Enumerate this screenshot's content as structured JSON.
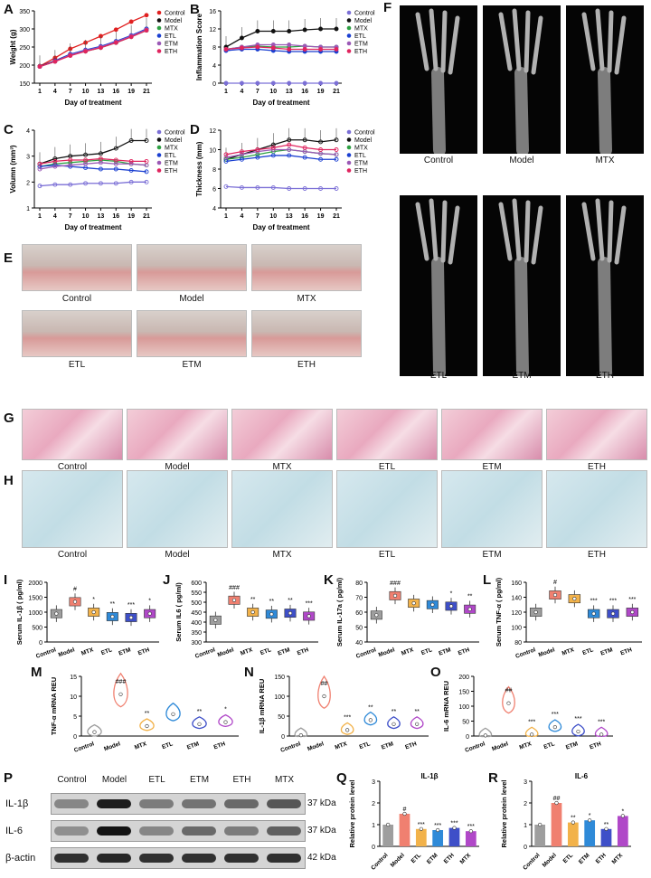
{
  "panels": {
    "A": {
      "letter": "A",
      "xlabel": "Day of treatment",
      "ylabel": "Weight (g)",
      "yticks": [
        "150",
        "200",
        "250",
        "300",
        "350"
      ],
      "xticks": [
        "1",
        "4",
        "7",
        "10",
        "13",
        "16",
        "19",
        "21"
      ],
      "legend": [
        "Control",
        "Model",
        "MTX",
        "ETL",
        "ETM",
        "ETH"
      ]
    },
    "B": {
      "letter": "B",
      "xlabel": "Day of treatment",
      "ylabel": "Inflammation Score",
      "yticks": [
        "0",
        "4",
        "8",
        "12",
        "16"
      ],
      "xticks": [
        "1",
        "4",
        "7",
        "10",
        "13",
        "16",
        "19",
        "21"
      ],
      "legend": [
        "Control",
        "Model",
        "MTX",
        "ETL",
        "ETM",
        "ETH"
      ]
    },
    "C": {
      "letter": "C",
      "xlabel": "Day of treatment",
      "ylabel": "Volumn (mm³)",
      "yticks": [
        "1",
        "2",
        "3",
        "4"
      ],
      "xticks": [
        "1",
        "4",
        "7",
        "10",
        "13",
        "16",
        "19",
        "21"
      ],
      "legend": [
        "Control",
        "Model",
        "MTX",
        "ETL",
        "ETM",
        "ETH"
      ]
    },
    "D": {
      "letter": "D",
      "xlabel": "Day of treatment",
      "ylabel": "Thickness (mm)",
      "yticks": [
        "4",
        "6",
        "8",
        "10",
        "12"
      ],
      "xticks": [
        "1",
        "4",
        "7",
        "10",
        "13",
        "16",
        "19",
        "21"
      ],
      "legend": [
        "Control",
        "Model",
        "MTX",
        "ETL",
        "ETM",
        "ETH"
      ]
    },
    "E": {
      "letter": "E",
      "labels": [
        "Control",
        "Model",
        "MTX",
        "ETL",
        "ETM",
        "ETH"
      ]
    },
    "F": {
      "letter": "F",
      "labels": [
        "Control",
        "Model",
        "MTX",
        "ETL",
        "ETM",
        "ETH"
      ]
    },
    "G": {
      "letter": "G",
      "labels": [
        "Control",
        "Model",
        "MTX",
        "ETL",
        "ETM",
        "ETH"
      ]
    },
    "H": {
      "letter": "H",
      "labels": [
        "Control",
        "Model",
        "MTX",
        "ETL",
        "ETM",
        "ETH"
      ]
    },
    "I": {
      "letter": "I",
      "ylabel": "Serum IL-1β ( pg/ml)",
      "yticks": [
        "0",
        "500",
        "1000",
        "1500",
        "2000"
      ],
      "sig": [
        "",
        "#",
        "*",
        "**",
        "***",
        "*"
      ]
    },
    "J": {
      "letter": "J",
      "ylabel": "Serum IL6 ( pg/ml)",
      "yticks": [
        "300",
        "350",
        "400",
        "450",
        "500",
        "550",
        "600"
      ],
      "sig": [
        "",
        "###",
        "**",
        "**",
        "**",
        "***"
      ]
    },
    "K": {
      "letter": "K",
      "ylabel": "Serum IL-17a ( pg/ml)",
      "yticks": [
        "40",
        "50",
        "60",
        "70",
        "80"
      ],
      "sig": [
        "",
        "###",
        "",
        "",
        "*",
        "**"
      ]
    },
    "L": {
      "letter": "L",
      "ylabel": "Serum TNF-α ( pg/ml)",
      "yticks": [
        "80",
        "100",
        "120",
        "140",
        "160"
      ],
      "sig": [
        "",
        "#",
        "",
        "***",
        "***",
        "***"
      ]
    },
    "M": {
      "letter": "M",
      "ylabel": "TNF-α mRNA REU",
      "yticks": [
        "0",
        "5",
        "10",
        "15"
      ],
      "sig": [
        "",
        "###",
        "**",
        "",
        "**",
        "*"
      ]
    },
    "N": {
      "letter": "N",
      "ylabel": "IL-1β mRNA REU",
      "yticks": [
        "0",
        "50",
        "100",
        "150"
      ],
      "sig": [
        "",
        "##",
        "***",
        "**",
        "**",
        "**"
      ]
    },
    "O": {
      "letter": "O",
      "ylabel": "IL-6 mRNA REU",
      "yticks": [
        "0",
        "50",
        "100",
        "150",
        "200"
      ],
      "sig": [
        "",
        "##",
        "***",
        "***",
        "***",
        "***"
      ]
    },
    "P": {
      "letter": "P",
      "lanes": [
        "Control",
        "Model",
        "ETL",
        "ETM",
        "ETH",
        "MTX"
      ],
      "rows": [
        {
          "name": "IL-1β",
          "kda": "37 kDa"
        },
        {
          "name": "IL-6",
          "kda": "37 kDa"
        },
        {
          "name": "β-actin",
          "kda": "42 kDa"
        }
      ]
    },
    "Q": {
      "letter": "Q",
      "title": "IL-1β",
      "ylabel": "Relative protein level",
      "yticks": [
        "0",
        "1",
        "2",
        "3"
      ],
      "sig": [
        "",
        "#",
        "***",
        "***",
        "***",
        "***"
      ]
    },
    "R": {
      "letter": "R",
      "title": "IL-6",
      "ylabel": "Relative protein level",
      "yticks": [
        "0",
        "1",
        "2",
        "3"
      ],
      "sig": [
        "",
        "##",
        "**",
        "*",
        "**",
        "*"
      ]
    }
  },
  "group_labels": [
    "Control",
    "Model",
    "MTX",
    "ETL",
    "ETM",
    "ETH"
  ],
  "group_labels_QR": [
    "Control",
    "Model",
    "ETL",
    "ETM",
    "ETH",
    "MTX"
  ],
  "colors": {
    "Control": "#7b6fd6",
    "Model": "#111111",
    "MTX": "#2ea043",
    "ETL": "#1a3fd1",
    "ETM": "#9b59b6",
    "ETH": "#e0245e",
    "ControlRed": "#e02020",
    "bar_control": "#9e9e9e",
    "bar_model": "#f08070",
    "bar_mtx": "#f2b24a",
    "bar_etl": "#2f8ad8",
    "bar_etm": "#3e4fc8",
    "bar_eth": "#b048c8"
  },
  "chart_data": [
    {
      "type": "line",
      "title": "",
      "xlabel": "Day of treatment",
      "ylabel": "Weight (g)",
      "x": [
        1,
        4,
        7,
        10,
        13,
        16,
        19,
        21
      ],
      "ylim": [
        150,
        350
      ],
      "series": [
        {
          "name": "Control",
          "values": [
            197,
            220,
            245,
            262,
            280,
            298,
            320,
            338
          ]
        },
        {
          "name": "Model",
          "values": [
            197,
            212,
            230,
            240,
            250,
            262,
            280,
            300
          ]
        },
        {
          "name": "MTX",
          "values": [
            196,
            210,
            228,
            238,
            248,
            262,
            278,
            296
          ]
        },
        {
          "name": "ETL",
          "values": [
            196,
            212,
            230,
            242,
            252,
            266,
            282,
            300
          ]
        },
        {
          "name": "ETM",
          "values": [
            196,
            210,
            228,
            240,
            250,
            264,
            280,
            298
          ]
        },
        {
          "name": "ETH",
          "values": [
            196,
            210,
            226,
            238,
            248,
            262,
            278,
            296
          ]
        }
      ]
    },
    {
      "type": "line",
      "title": "",
      "xlabel": "Day of treatment",
      "ylabel": "Inflammation Score",
      "x": [
        1,
        4,
        7,
        10,
        13,
        16,
        19,
        21
      ],
      "ylim": [
        0,
        16
      ],
      "series": [
        {
          "name": "Control",
          "values": [
            0,
            0,
            0,
            0,
            0,
            0,
            0,
            0
          ]
        },
        {
          "name": "Model",
          "values": [
            8,
            10,
            11.5,
            11.5,
            11.5,
            11.8,
            12,
            12
          ]
        },
        {
          "name": "MTX",
          "values": [
            7.5,
            8,
            8.2,
            8,
            8,
            8.2,
            8,
            8
          ]
        },
        {
          "name": "ETL",
          "values": [
            7.2,
            7.5,
            7.5,
            7.2,
            7,
            7,
            7,
            7
          ]
        },
        {
          "name": "ETM",
          "values": [
            7.5,
            8,
            8.5,
            8.5,
            8.5,
            8.2,
            8,
            8
          ]
        },
        {
          "name": "ETH",
          "values": [
            7.5,
            7.8,
            8,
            7.8,
            7.5,
            7.5,
            7.5,
            7.5
          ]
        }
      ]
    },
    {
      "type": "line",
      "title": "",
      "xlabel": "Day of treatment",
      "ylabel": "Volumn (mm³)",
      "x": [
        1,
        4,
        7,
        10,
        13,
        16,
        19,
        21
      ],
      "ylim": [
        1,
        4
      ],
      "series": [
        {
          "name": "Control",
          "values": [
            1.85,
            1.9,
            1.9,
            1.95,
            1.95,
            1.95,
            2,
            2
          ]
        },
        {
          "name": "Model",
          "values": [
            2.7,
            2.9,
            3.0,
            3.05,
            3.1,
            3.3,
            3.6,
            3.6
          ]
        },
        {
          "name": "MTX",
          "values": [
            2.6,
            2.7,
            2.75,
            2.8,
            2.85,
            2.8,
            2.7,
            2.65
          ]
        },
        {
          "name": "ETL",
          "values": [
            2.6,
            2.65,
            2.6,
            2.55,
            2.5,
            2.5,
            2.45,
            2.4
          ]
        },
        {
          "name": "ETM",
          "values": [
            2.5,
            2.6,
            2.65,
            2.7,
            2.75,
            2.7,
            2.7,
            2.65
          ]
        },
        {
          "name": "ETH",
          "values": [
            2.7,
            2.8,
            2.85,
            2.85,
            2.9,
            2.85,
            2.8,
            2.8
          ]
        }
      ]
    },
    {
      "type": "line",
      "title": "",
      "xlabel": "Day of treatment",
      "ylabel": "Thickness (mm)",
      "x": [
        1,
        4,
        7,
        10,
        13,
        16,
        19,
        21
      ],
      "ylim": [
        4,
        12
      ],
      "series": [
        {
          "name": "Control",
          "values": [
            6.2,
            6.1,
            6.1,
            6.1,
            6.0,
            6.0,
            6.0,
            6.0
          ]
        },
        {
          "name": "Model",
          "values": [
            9,
            9.5,
            10,
            10.5,
            11,
            11,
            10.8,
            11
          ]
        },
        {
          "name": "MTX",
          "values": [
            9,
            9.2,
            9.5,
            9.8,
            10,
            9.8,
            9.6,
            9.5
          ]
        },
        {
          "name": "ETL",
          "values": [
            8.8,
            9,
            9.2,
            9.4,
            9.4,
            9.2,
            9,
            9
          ]
        },
        {
          "name": "ETM",
          "values": [
            9.2,
            9.5,
            9.8,
            10,
            10,
            9.8,
            9.6,
            9.5
          ]
        },
        {
          "name": "ETH",
          "values": [
            9.5,
            9.8,
            10,
            10.2,
            10.5,
            10.2,
            10,
            10
          ]
        }
      ]
    },
    {
      "type": "bar",
      "title": "",
      "ylabel": "Serum IL-1β ( pg/ml)",
      "categories": [
        "Control",
        "Model",
        "MTX",
        "ETL",
        "ETM",
        "ETH"
      ],
      "values": [
        950,
        1350,
        1000,
        850,
        820,
        950
      ],
      "ylim": [
        0,
        2000
      ]
    },
    {
      "type": "bar",
      "title": "",
      "ylabel": "Serum IL6 ( pg/ml)",
      "categories": [
        "Control",
        "Model",
        "MTX",
        "ETL",
        "ETM",
        "ETH"
      ],
      "values": [
        410,
        510,
        450,
        440,
        445,
        430
      ],
      "ylim": [
        300,
        600
      ]
    },
    {
      "type": "bar",
      "title": "",
      "ylabel": "Serum IL-17a ( pg/ml)",
      "categories": [
        "Control",
        "Model",
        "MTX",
        "ETL",
        "ETM",
        "ETH"
      ],
      "values": [
        58,
        71,
        66,
        65,
        64,
        62
      ],
      "ylim": [
        40,
        80
      ]
    },
    {
      "type": "bar",
      "title": "",
      "ylabel": "Serum TNF-α ( pg/ml)",
      "categories": [
        "Control",
        "Model",
        "MTX",
        "ETL",
        "ETM",
        "ETH"
      ],
      "values": [
        120,
        143,
        138,
        118,
        118,
        120
      ],
      "ylim": [
        80,
        160
      ]
    },
    {
      "type": "bar",
      "title": "",
      "ylabel": "TNF-α mRNA REU",
      "categories": [
        "Control",
        "Model",
        "MTX",
        "ETL",
        "ETM",
        "ETH"
      ],
      "values": [
        1,
        10.5,
        2.5,
        5.5,
        3,
        3.5
      ],
      "ylim": [
        0,
        15
      ]
    },
    {
      "type": "bar",
      "title": "",
      "ylabel": "IL-1β mRNA REU",
      "categories": [
        "Control",
        "Model",
        "MTX",
        "ETL",
        "ETM",
        "ETH"
      ],
      "values": [
        2,
        100,
        15,
        40,
        30,
        30
      ],
      "ylim": [
        0,
        150
      ]
    },
    {
      "type": "bar",
      "title": "",
      "ylabel": "IL-6 mRNA REU",
      "categories": [
        "Control",
        "Model",
        "MTX",
        "ETL",
        "ETM",
        "ETH"
      ],
      "values": [
        2,
        110,
        5,
        30,
        15,
        5
      ],
      "ylim": [
        0,
        200
      ]
    },
    {
      "type": "bar",
      "title": "IL-1β",
      "ylabel": "Relative protein level",
      "categories": [
        "Control",
        "Model",
        "ETL",
        "ETM",
        "ETH",
        "MTX"
      ],
      "values": [
        1.0,
        1.5,
        0.8,
        0.75,
        0.85,
        0.7
      ],
      "ylim": [
        0,
        3
      ]
    },
    {
      "type": "bar",
      "title": "IL-6",
      "ylabel": "Relative protein level",
      "categories": [
        "Control",
        "Model",
        "ETL",
        "ETM",
        "ETH",
        "MTX"
      ],
      "values": [
        1.0,
        2.0,
        1.1,
        1.2,
        0.8,
        1.4
      ],
      "ylim": [
        0,
        3
      ]
    }
  ]
}
